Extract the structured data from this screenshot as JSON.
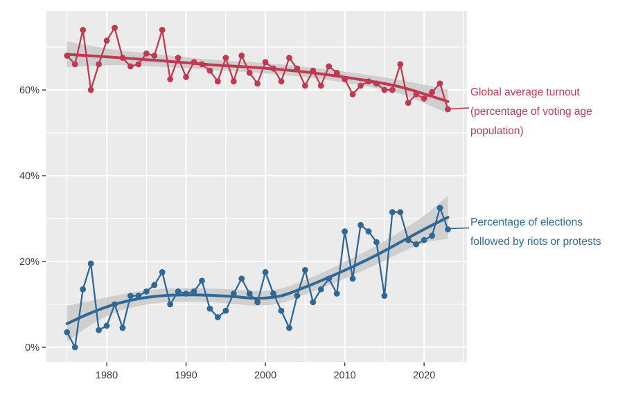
{
  "figure": {
    "background": "#ffffff",
    "panel_background": "#ebebeb",
    "grid_color": "#ffffff",
    "ribbon_color": "#cccccc",
    "tick_text_color": "#3c3c3c"
  },
  "chart_data": {
    "type": "line",
    "title": "",
    "xlabel": "",
    "ylabel": "",
    "legend_position": "none",
    "grid": true,
    "x": [
      1975,
      1976,
      1977,
      1978,
      1979,
      1980,
      1981,
      1982,
      1983,
      1984,
      1985,
      1986,
      1987,
      1988,
      1989,
      1990,
      1991,
      1992,
      1993,
      1994,
      1995,
      1996,
      1997,
      1998,
      1999,
      2000,
      2001,
      2002,
      2003,
      2004,
      2005,
      2006,
      2007,
      2008,
      2009,
      2010,
      2011,
      2012,
      2013,
      2014,
      2015,
      2016,
      2017,
      2018,
      2019,
      2020,
      2021,
      2022,
      2023
    ],
    "series": [
      {
        "name": "Global average turnout (percentage of voting age population)",
        "color": "#bf3a50",
        "values": [
          68,
          66,
          74,
          60,
          66,
          71.5,
          74.5,
          67.5,
          65.5,
          66,
          68.5,
          68,
          74,
          62.5,
          67.5,
          63,
          66.5,
          66,
          64.5,
          62,
          67.5,
          62,
          68,
          64,
          61.5,
          66.5,
          65,
          62,
          67.5,
          65,
          61,
          64.5,
          61,
          65.5,
          64,
          62.5,
          59,
          61,
          62,
          61.5,
          60,
          60,
          66,
          57,
          59,
          58,
          59.5,
          61.5,
          55.5
        ]
      },
      {
        "name": "Percentage of elections followed by riots or protests",
        "color": "#2f6795",
        "values": [
          3.5,
          0,
          13.5,
          19.5,
          4,
          5,
          10,
          4.5,
          12,
          12,
          13,
          14.5,
          17.5,
          10,
          13,
          12.5,
          13,
          15.5,
          9,
          7,
          8.5,
          12.5,
          16,
          12.5,
          10.5,
          17.5,
          12.5,
          8.5,
          4.5,
          12,
          18,
          10.5,
          13.5,
          16,
          12.5,
          27,
          16,
          28.5,
          27,
          24.5,
          12,
          31.5,
          31.5,
          25,
          24,
          25,
          26,
          32.5,
          27.5
        ]
      }
    ],
    "trends": [
      {
        "series": 0,
        "x": [
          1975,
          1981,
          1987,
          1993,
          1999,
          2005,
          2011,
          2017,
          2023
        ],
        "y": [
          68.3,
          67.6,
          66.8,
          65.9,
          65.2,
          64.2,
          62.7,
          60.7,
          57.3
        ],
        "ci_halfwidth": [
          3.0,
          1.8,
          1.4,
          1.2,
          1.2,
          1.2,
          1.3,
          1.6,
          2.8
        ]
      },
      {
        "series": 1,
        "x": [
          1975,
          1978,
          1981,
          1984,
          1987,
          1990,
          1993,
          1996,
          1999,
          2002,
          2005,
          2008,
          2011,
          2014,
          2017,
          2020,
          2023
        ],
        "y": [
          5.5,
          8.0,
          10.0,
          11.3,
          12.0,
          12.2,
          12.1,
          11.8,
          11.4,
          12.0,
          14.0,
          16.3,
          18.8,
          21.5,
          24.5,
          27.5,
          30.3
        ],
        "ci_halfwidth": [
          4.2,
          2.8,
          2.0,
          1.7,
          1.6,
          1.6,
          1.6,
          1.7,
          1.7,
          1.7,
          1.7,
          1.8,
          2.0,
          2.2,
          2.5,
          3.2,
          5.0
        ]
      }
    ],
    "annotations": [
      {
        "lines": [
          "Global average turnout",
          "(percentage of voting age",
          "population)"
        ],
        "color": "#bf3a50",
        "anchor_year": 2023
      },
      {
        "lines": [
          "Percentage of elections",
          "followed by riots or protests"
        ],
        "color": "#2f6795",
        "anchor_year": 2023
      }
    ],
    "axes": {
      "x_ticks": [
        1980,
        1990,
        2000,
        2010,
        2020
      ],
      "x_tick_labels": [
        "1980",
        "1990",
        "2000",
        "2010",
        "2020"
      ],
      "x_minor_ticks": [
        1975,
        1985,
        1995,
        2005,
        2015,
        2025
      ],
      "y_ticks": [
        0,
        20,
        40,
        60
      ],
      "y_tick_labels": [
        "0%",
        "20%",
        "40%",
        "60%"
      ],
      "y_minor_ticks": [
        10,
        30,
        50,
        70
      ],
      "xlim": [
        1972.4,
        2025.4
      ],
      "ylim": [
        -3.4,
        78.4
      ]
    }
  }
}
